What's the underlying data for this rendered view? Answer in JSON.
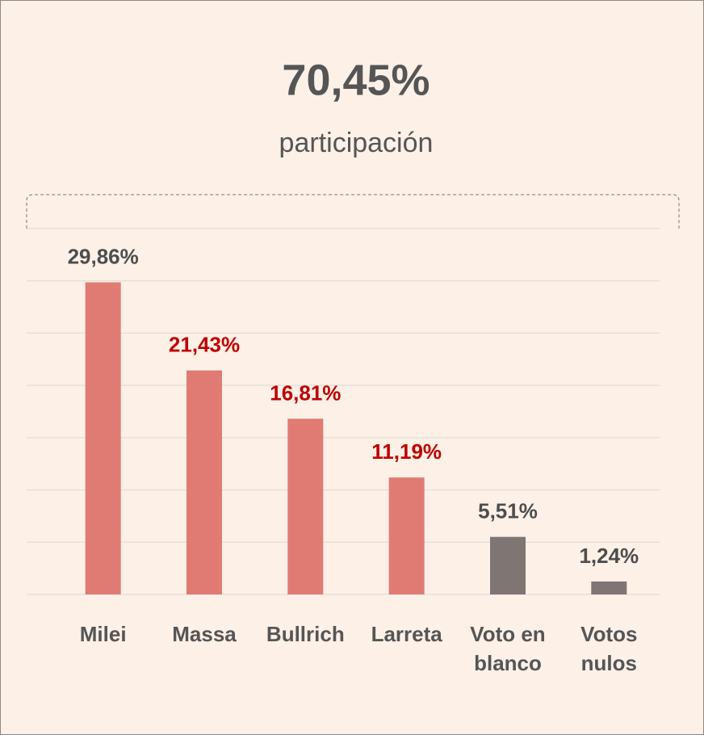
{
  "chart_data": {
    "type": "bar",
    "title": "70,45%",
    "subtitle": "participación",
    "categories": [
      "Milei",
      "Massa",
      "Bullrich",
      "Larreta",
      "Voto en blanco",
      "Votos nulos"
    ],
    "values": [
      29.86,
      21.43,
      16.81,
      11.19,
      5.51,
      1.24
    ],
    "value_labels": [
      "29,86%",
      "21,43%",
      "16,81%",
      "11,19%",
      "5,51%",
      "1,24%"
    ],
    "colors": [
      "#e07b73",
      "#e07b73",
      "#e07b73",
      "#e07b73",
      "#7f7573",
      "#7f7573"
    ],
    "label_colors": [
      "#4d4d4d",
      "#c00000",
      "#c00000",
      "#c00000",
      "#4d4d4d",
      "#4d4d4d"
    ],
    "ylim": [
      0,
      35
    ],
    "yticks": [
      0,
      5,
      10,
      15,
      20,
      25,
      30,
      35
    ],
    "grid": true
  }
}
